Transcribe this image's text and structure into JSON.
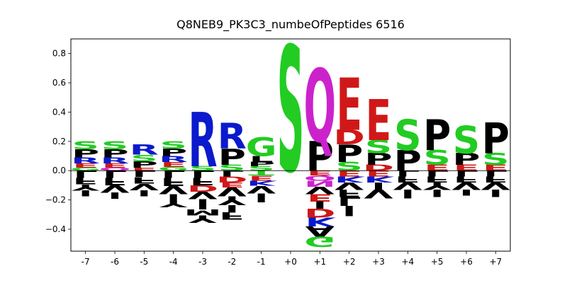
{
  "chart_data": {
    "type": "sequence-logo",
    "title": "Q8NEB9_PK3C3_numbeOfPeptides 6516",
    "xlabel": "",
    "ylabel": "",
    "ylim": [
      -0.55,
      0.9
    ],
    "yticks": [
      -0.4,
      -0.2,
      0.0,
      0.2,
      0.4,
      0.6,
      0.8
    ],
    "ytick_labels": [
      "−0.4",
      "−0.2",
      "0.0",
      "0.2",
      "0.4",
      "0.6",
      "0.8"
    ],
    "positions": [
      "-7",
      "-6",
      "-5",
      "-4",
      "-3",
      "-2",
      "-1",
      "+0",
      "+1",
      "+2",
      "+3",
      "+4",
      "+5",
      "+6",
      "+7"
    ],
    "zero_line": true,
    "colors": {
      "S": "#22cc22",
      "T": "#22cc22",
      "G": "#22cc22",
      "P": "#000000",
      "L": "#000000",
      "V": "#000000",
      "I": "#000000",
      "F": "#000000",
      "Y": "#000000",
      "R": "#0a1acc",
      "K": "#0a1acc",
      "H": "#0a1acc",
      "E": "#d01818",
      "D": "#d01818",
      "Q": "#cc22cc",
      "N": "#cc22cc",
      "C": "#22cc22",
      "M": "#000000",
      "A": "#000000",
      "W": "#000000"
    },
    "columns": [
      {
        "pos": "-7",
        "positive": [
          [
            "S",
            0.055
          ],
          [
            "P",
            0.055
          ],
          [
            "R",
            0.04
          ],
          [
            "E",
            0.03
          ],
          [
            "G",
            0.02
          ]
        ],
        "negative": [
          [
            "L",
            0.05
          ],
          [
            "F",
            0.045
          ],
          [
            "Y",
            0.04
          ],
          [
            "I",
            0.04
          ]
        ]
      },
      {
        "pos": "-6",
        "positive": [
          [
            "S",
            0.055
          ],
          [
            "P",
            0.055
          ],
          [
            "R",
            0.04
          ],
          [
            "E",
            0.03
          ],
          [
            "Q",
            0.02
          ]
        ],
        "negative": [
          [
            "L",
            0.05
          ],
          [
            "F",
            0.05
          ],
          [
            "V",
            0.05
          ],
          [
            "I",
            0.045
          ]
        ]
      },
      {
        "pos": "-5",
        "positive": [
          [
            "R",
            0.07
          ],
          [
            "S",
            0.045
          ],
          [
            "P",
            0.045
          ],
          [
            "E",
            0.02
          ]
        ],
        "negative": [
          [
            "L",
            0.045
          ],
          [
            "F",
            0.045
          ],
          [
            "V",
            0.045
          ],
          [
            "I",
            0.04
          ]
        ]
      },
      {
        "pos": "-4",
        "positive": [
          [
            "S",
            0.05
          ],
          [
            "P",
            0.05
          ],
          [
            "R",
            0.04
          ],
          [
            "E",
            0.035
          ],
          [
            "G",
            0.025
          ]
        ],
        "negative": [
          [
            "L",
            0.05
          ],
          [
            "F",
            0.055
          ],
          [
            "V",
            0.055
          ],
          [
            "I",
            0.05
          ],
          [
            "Y",
            0.04
          ]
        ]
      },
      {
        "pos": "-3",
        "positive": [
          [
            "R",
            0.37
          ],
          [
            "S",
            0.03
          ]
        ],
        "negative": [
          [
            "L",
            0.05
          ],
          [
            "F",
            0.05
          ],
          [
            "D",
            0.045
          ],
          [
            "V",
            0.05
          ],
          [
            "I",
            0.07
          ],
          [
            "M",
            0.04
          ],
          [
            "Y",
            0.05
          ]
        ]
      },
      {
        "pos": "-2",
        "positive": [
          [
            "R",
            0.175
          ],
          [
            "P",
            0.11
          ],
          [
            "S",
            0.04
          ]
        ],
        "negative": [
          [
            "L",
            0.04
          ],
          [
            "D",
            0.04
          ],
          [
            "E",
            0.035
          ],
          [
            "V",
            0.06
          ],
          [
            "Y",
            0.06
          ],
          [
            "I",
            0.05
          ],
          [
            "F",
            0.05
          ]
        ]
      },
      {
        "pos": "-1",
        "positive": [
          [
            "G",
            0.13
          ],
          [
            "L",
            0.04
          ],
          [
            "P",
            0.03
          ],
          [
            "S",
            0.03
          ]
        ],
        "negative": [
          [
            "T",
            0.035
          ],
          [
            "E",
            0.035
          ],
          [
            "K",
            0.035
          ],
          [
            "V",
            0.05
          ],
          [
            "I",
            0.06
          ]
        ]
      },
      {
        "pos": "+0",
        "positive": [
          [
            "S",
            0.86
          ]
        ],
        "negative": []
      },
      {
        "pos": "+1",
        "positive": [
          [
            "Q",
            0.5
          ],
          [
            "P",
            0.2
          ]
        ],
        "negative": [
          [
            "E",
            0.035
          ],
          [
            "Q",
            0.035
          ],
          [
            "N",
            0.04
          ],
          [
            "V",
            0.05
          ],
          [
            "E",
            0.05
          ],
          [
            "I",
            0.05
          ],
          [
            "D",
            0.06
          ],
          [
            "K",
            0.06
          ],
          [
            "A",
            0.07
          ],
          [
            "G",
            0.07
          ]
        ]
      },
      {
        "pos": "+2",
        "positive": [
          [
            "E",
            0.36
          ],
          [
            "D",
            0.1
          ],
          [
            "P",
            0.12
          ],
          [
            "S",
            0.06
          ]
        ],
        "negative": [
          [
            "E",
            0.04
          ],
          [
            "K",
            0.04
          ],
          [
            "V",
            0.05
          ],
          [
            "F",
            0.05
          ],
          [
            "L",
            0.06
          ],
          [
            "I",
            0.07
          ]
        ]
      },
      {
        "pos": "+3",
        "positive": [
          [
            "E",
            0.28
          ],
          [
            "S",
            0.09
          ],
          [
            "P",
            0.08
          ],
          [
            "D",
            0.04
          ]
        ],
        "negative": [
          [
            "E",
            0.04
          ],
          [
            "K",
            0.04
          ],
          [
            "I",
            0.05
          ],
          [
            "V",
            0.06
          ]
        ]
      },
      {
        "pos": "+4",
        "positive": [
          [
            "S",
            0.21
          ],
          [
            "P",
            0.14
          ]
        ],
        "negative": [
          [
            "L",
            0.04
          ],
          [
            "F",
            0.04
          ],
          [
            "V",
            0.05
          ],
          [
            "I",
            0.06
          ]
        ]
      },
      {
        "pos": "+5",
        "positive": [
          [
            "P",
            0.21
          ],
          [
            "S",
            0.1
          ],
          [
            "E",
            0.04
          ]
        ],
        "negative": [
          [
            "L",
            0.04
          ],
          [
            "F",
            0.04
          ],
          [
            "Y",
            0.05
          ],
          [
            "I",
            0.05
          ]
        ]
      },
      {
        "pos": "+6",
        "positive": [
          [
            "S",
            0.19
          ],
          [
            "P",
            0.08
          ],
          [
            "E",
            0.04
          ]
        ],
        "negative": [
          [
            "L",
            0.04
          ],
          [
            "F",
            0.04
          ],
          [
            "V",
            0.05
          ],
          [
            "I",
            0.04
          ]
        ]
      },
      {
        "pos": "+7",
        "positive": [
          [
            "P",
            0.21
          ],
          [
            "S",
            0.08
          ],
          [
            "E",
            0.04
          ]
        ],
        "negative": [
          [
            "L",
            0.04
          ],
          [
            "F",
            0.04
          ],
          [
            "V",
            0.05
          ],
          [
            "I",
            0.05
          ]
        ]
      }
    ]
  }
}
